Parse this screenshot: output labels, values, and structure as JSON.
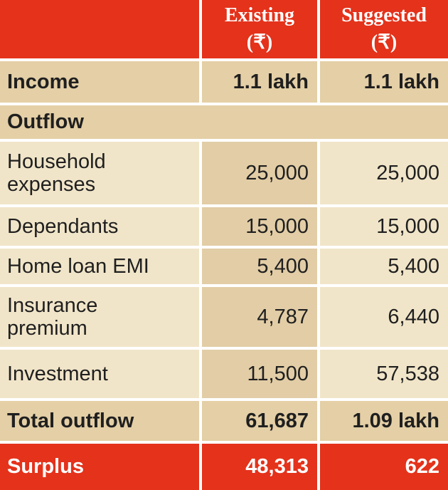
{
  "header": {
    "existing_title": "Existing",
    "existing_unit": "(₹)",
    "suggested_title": "Suggested",
    "suggested_unit": "(₹)"
  },
  "income": {
    "label": "Income",
    "existing": "1.1 lakh",
    "suggested": "1.1 lakh"
  },
  "outflow_label": "Outflow",
  "rows": [
    {
      "label": "Household expenses",
      "existing": "25,000",
      "suggested": "25,000"
    },
    {
      "label": "Dependants",
      "existing": "15,000",
      "suggested": "15,000"
    },
    {
      "label": "Home loan EMI",
      "existing": "5,400",
      "suggested": "5,400"
    },
    {
      "label": "Insurance premium",
      "existing": "4,787",
      "suggested": "6,440"
    },
    {
      "label": "Investment",
      "existing": "11,500",
      "suggested": "57,538"
    }
  ],
  "total_outflow": {
    "label": "Total outflow",
    "existing": "61,687",
    "suggested": "1.09 lakh"
  },
  "surplus": {
    "label": "Surplus",
    "existing": "48,313",
    "suggested": "622"
  },
  "colors": {
    "red": "#e4321b",
    "tan": "#e4cfa6",
    "light": "#f1e5c9"
  }
}
